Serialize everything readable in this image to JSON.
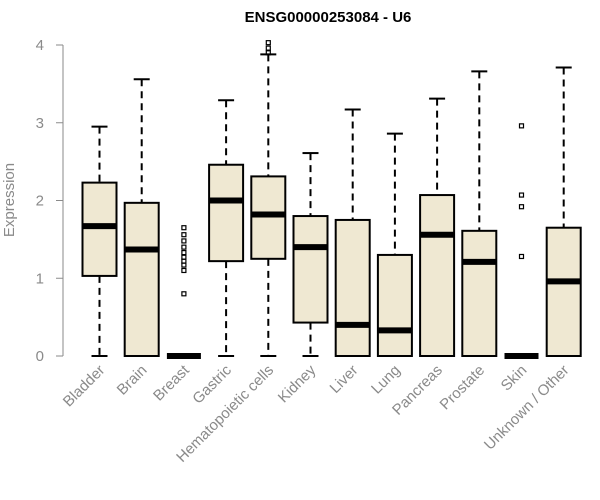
{
  "chart_data": {
    "type": "boxplot",
    "title": "ENSG00000253084 - U6",
    "xlabel": "",
    "ylabel": "Expression",
    "ylim": [
      0,
      4
    ],
    "yticks": [
      "0",
      "1",
      "2",
      "3",
      "4"
    ],
    "grid": false,
    "categories": [
      "Bladder",
      "Brain",
      "Breast",
      "Gastric",
      "Hematopoietic cells",
      "Kidney",
      "Liver",
      "Lung",
      "Pancreas",
      "Prostate",
      "Skin",
      "Unknown / Other"
    ],
    "box_color": "#efe8d2",
    "boxes": [
      {
        "min": 0,
        "q1": 1.03,
        "median": 1.67,
        "q3": 2.23,
        "max": 2.95,
        "outliers": []
      },
      {
        "min": 0,
        "q1": 0,
        "median": 1.37,
        "q3": 1.97,
        "max": 3.56,
        "outliers": []
      },
      {
        "min": 0,
        "q1": 0,
        "median": 0,
        "q3": 0,
        "max": 0,
        "outliers": [
          0.8,
          1.1,
          1.17,
          1.22,
          1.27,
          1.33,
          1.4,
          1.48,
          1.56,
          1.65
        ]
      },
      {
        "min": 0,
        "q1": 1.22,
        "median": 2.0,
        "q3": 2.46,
        "max": 3.29,
        "outliers": []
      },
      {
        "min": 0,
        "q1": 1.25,
        "median": 1.82,
        "q3": 2.31,
        "max": 3.88,
        "outliers": [
          3.9,
          3.96,
          4.03
        ]
      },
      {
        "min": 0,
        "q1": 0.43,
        "median": 1.4,
        "q3": 1.8,
        "max": 2.61,
        "outliers": []
      },
      {
        "min": 0,
        "q1": 0,
        "median": 0.4,
        "q3": 1.75,
        "max": 3.17,
        "outliers": []
      },
      {
        "min": 0,
        "q1": 0,
        "median": 0.33,
        "q3": 1.3,
        "max": 2.86,
        "outliers": []
      },
      {
        "min": 0,
        "q1": 0,
        "median": 1.56,
        "q3": 2.07,
        "max": 3.31,
        "outliers": []
      },
      {
        "min": 0,
        "q1": 0,
        "median": 1.21,
        "q3": 1.61,
        "max": 3.66,
        "outliers": []
      },
      {
        "min": 0,
        "q1": 0,
        "median": 0,
        "q3": 0,
        "max": 0,
        "outliers": [
          1.28,
          1.92,
          2.07,
          2.96
        ]
      },
      {
        "min": 0,
        "q1": 0,
        "median": 0.96,
        "q3": 1.65,
        "max": 3.71,
        "outliers": []
      }
    ]
  }
}
